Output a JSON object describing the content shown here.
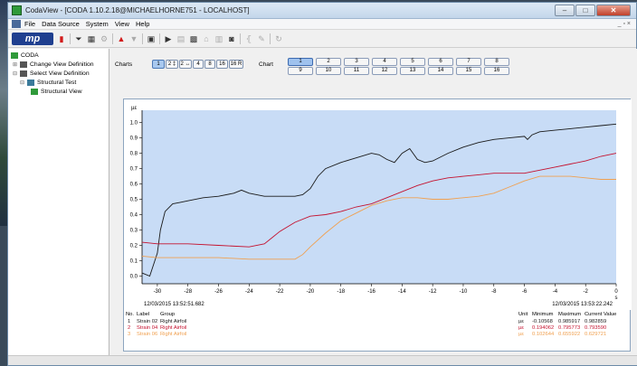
{
  "window": {
    "title": "CodaView - [CODA 1.10.2.18@MICHAELHORNE751 - LOCALHOST]",
    "minimize": "–",
    "maximize": "□",
    "close": "✕"
  },
  "menu": {
    "items": [
      "File",
      "Data Source",
      "System",
      "View",
      "Help"
    ],
    "mdi_controls": "_ ▫ ×"
  },
  "toolbar": {
    "logo": "mp"
  },
  "tree": {
    "root": "CODA",
    "items": [
      {
        "label": "Change View Definition",
        "level": 1
      },
      {
        "label": "Select View Definition",
        "level": 1
      },
      {
        "label": "Structural Test",
        "level": 2
      },
      {
        "label": "Structural View",
        "level": 3
      }
    ]
  },
  "controls": {
    "charts_label": "Charts",
    "chart_count_buttons": [
      "1",
      "2 ‡",
      "2 ↔",
      "4",
      "8",
      "16",
      "16 R"
    ],
    "chart_label": "Chart",
    "chart_numbers": [
      "1",
      "2",
      "3",
      "4",
      "5",
      "6",
      "7",
      "8",
      "9",
      "10",
      "11",
      "12",
      "13",
      "14",
      "15",
      "16"
    ]
  },
  "chart_data": {
    "type": "line",
    "ylabel": "µε",
    "xlabel": "s",
    "xlim": [
      -31,
      0
    ],
    "ylim": [
      -0.05,
      1.08
    ],
    "x_ticks": [
      -30,
      -28,
      -26,
      -24,
      -22,
      -20,
      -18,
      -16,
      -14,
      -12,
      -10,
      -8,
      -6,
      -4,
      -2,
      0
    ],
    "y_ticks": [
      0.0,
      0.1,
      0.2,
      0.3,
      0.4,
      0.5,
      0.6,
      0.7,
      0.8,
      0.9,
      1.0
    ],
    "start_time": "12/03/2015 13:52:51.682",
    "end_time": "12/03/2015 13:53:22.242",
    "series": [
      {
        "name": "Strain 02",
        "color": "#1a1a1a",
        "x": [
          -31,
          -30.5,
          -30,
          -29.8,
          -29.5,
          -29,
          -28.5,
          -28,
          -27,
          -26,
          -25,
          -24.5,
          -24,
          -23,
          -22,
          -21,
          -20.5,
          -20,
          -19.5,
          -19,
          -18,
          -17,
          -16,
          -15.5,
          -15,
          -14.5,
          -14,
          -13.5,
          -13,
          -12.5,
          -12,
          -11,
          -10,
          -9,
          -8,
          -7,
          -6,
          -5.8,
          -5.5,
          -5,
          -4,
          -3,
          -2,
          -1,
          0
        ],
        "y": [
          0.02,
          0.0,
          0.15,
          0.3,
          0.42,
          0.47,
          0.48,
          0.49,
          0.51,
          0.52,
          0.54,
          0.56,
          0.54,
          0.52,
          0.52,
          0.52,
          0.53,
          0.57,
          0.65,
          0.7,
          0.74,
          0.77,
          0.8,
          0.79,
          0.76,
          0.74,
          0.8,
          0.83,
          0.76,
          0.74,
          0.75,
          0.8,
          0.84,
          0.87,
          0.89,
          0.9,
          0.91,
          0.89,
          0.92,
          0.94,
          0.95,
          0.96,
          0.97,
          0.98,
          0.99
        ]
      },
      {
        "name": "Strain 04",
        "color": "#c4122f",
        "x": [
          -31,
          -30,
          -28,
          -26,
          -24,
          -23,
          -22.5,
          -22,
          -21,
          -20,
          -19,
          -18,
          -17,
          -16,
          -15,
          -14,
          -13,
          -12,
          -11,
          -10,
          -9,
          -8,
          -7,
          -6,
          -5,
          -4,
          -3,
          -2,
          -1,
          0
        ],
        "y": [
          0.22,
          0.21,
          0.21,
          0.2,
          0.19,
          0.21,
          0.25,
          0.29,
          0.35,
          0.39,
          0.4,
          0.42,
          0.45,
          0.47,
          0.51,
          0.55,
          0.59,
          0.62,
          0.64,
          0.65,
          0.66,
          0.67,
          0.67,
          0.67,
          0.69,
          0.71,
          0.73,
          0.75,
          0.78,
          0.8
        ]
      },
      {
        "name": "Strain 06",
        "color": "#f0a050",
        "x": [
          -31,
          -30,
          -28,
          -26,
          -24,
          -22,
          -21,
          -20.5,
          -20,
          -19,
          -18,
          -17,
          -16,
          -15,
          -14,
          -13,
          -12,
          -11,
          -10,
          -9,
          -8,
          -7,
          -6,
          -5,
          -4,
          -3,
          -2,
          -1,
          0
        ],
        "y": [
          0.13,
          0.12,
          0.12,
          0.12,
          0.11,
          0.11,
          0.11,
          0.14,
          0.19,
          0.28,
          0.36,
          0.41,
          0.46,
          0.49,
          0.51,
          0.51,
          0.5,
          0.5,
          0.51,
          0.52,
          0.54,
          0.58,
          0.62,
          0.65,
          0.65,
          0.65,
          0.64,
          0.63,
          0.63
        ]
      }
    ]
  },
  "legend_table": {
    "headers": {
      "no": "No.",
      "label": "Label",
      "group": "Group",
      "unit": "Unit",
      "minimum": "Minimum",
      "maximum": "Maximum",
      "current": "Current Value"
    },
    "rows": [
      {
        "no": "1",
        "label": "Strain 02",
        "group": "Right Airfoil",
        "unit": "µε",
        "minimum": "-0.10568",
        "maximum": "0.985917",
        "current": "0.982859",
        "color": "#1a1a1a"
      },
      {
        "no": "2",
        "label": "Strain 04",
        "group": "Right Airfoil",
        "unit": "µε",
        "minimum": "0.194062",
        "maximum": "0.795773",
        "current": "0.793590",
        "color": "#c4122f"
      },
      {
        "no": "3",
        "label": "Strain 06",
        "group": "Right Airfoil",
        "unit": "µε",
        "minimum": "0.102644",
        "maximum": "0.655922",
        "current": "0.629721",
        "color": "#f0a050"
      }
    ]
  }
}
